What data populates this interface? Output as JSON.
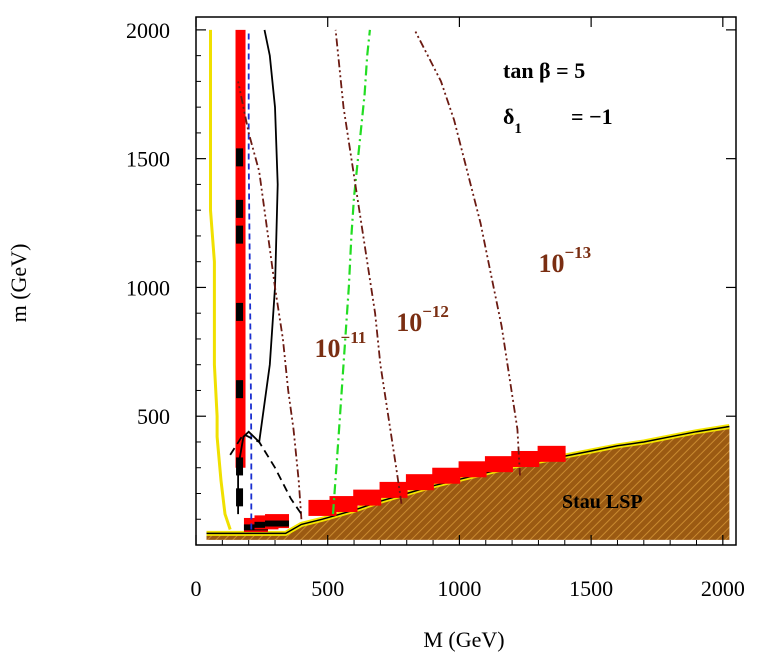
{
  "chart_data": {
    "type": "line",
    "title": "",
    "xlabel": "M (GeV)",
    "ylabel": "m (GeV)",
    "xlim": [
      0,
      2050
    ],
    "ylim": [
      0,
      2050
    ],
    "x_ticks": [
      "0",
      "500",
      "1000",
      "1500",
      "2000"
    ],
    "y_ticks": [
      "500",
      "1000",
      "1500",
      "2000"
    ],
    "x_tick_values": [
      0,
      500,
      1000,
      1500,
      2000
    ],
    "y_tick_values": [
      500,
      1000,
      1500,
      2000
    ],
    "annotations": {
      "tan_beta": "tan β = 5",
      "delta_symbol": "δ",
      "delta_sub": "1",
      "delta_value": "= −1",
      "region_label": "Stau LSP"
    },
    "contour_labels": [
      {
        "base": "10",
        "exp": "−11",
        "x": 450,
        "y": 730
      },
      {
        "base": "10",
        "exp": "−12",
        "x": 760,
        "y": 830
      },
      {
        "base": "10",
        "exp": "−13",
        "x": 1300,
        "y": 1060
      }
    ],
    "colors": {
      "stau_fill": "#9b5a12",
      "stau_edge": "#f5e600",
      "red_band": "#ff0000",
      "black_band": "#000000",
      "green_line": "#22dd22",
      "blue_line": "#1a2fd0",
      "contour": "#6b1a12",
      "yellow_line": "#f0e000"
    },
    "series": [
      {
        "style": "stau-boundary",
        "x": [
          40,
          340,
          400,
          480,
          600,
          700,
          800,
          900,
          1000,
          1100,
          1200,
          1300,
          1400,
          1500,
          1600,
          1700,
          1800,
          1900,
          2025
        ],
        "y": [
          45,
          45,
          80,
          100,
          135,
          170,
          200,
          230,
          255,
          280,
          305,
          325,
          345,
          365,
          385,
          400,
          420,
          440,
          460
        ]
      },
      {
        "style": "yellow-boundary",
        "x": [
          55,
          55,
          70,
          70,
          80,
          80,
          95,
          110,
          130
        ],
        "y": [
          2000,
          1300,
          1100,
          700,
          500,
          420,
          250,
          120,
          60
        ]
      },
      {
        "style": "green-dashed",
        "x": [
          520,
          540,
          560,
          580,
          590,
          600,
          620,
          640,
          650,
          660
        ],
        "y": [
          120,
          400,
          700,
          1000,
          1200,
          1350,
          1550,
          1750,
          1900,
          2000
        ]
      },
      {
        "style": "blue-dashed",
        "x": [
          210,
          210,
          205,
          200,
          200
        ],
        "y": [
          60,
          400,
          1000,
          1500,
          2000
        ]
      },
      {
        "style": "black-solid",
        "x": [
          160,
          160,
          180,
          200,
          240,
          280,
          300,
          310,
          300,
          280,
          260
        ],
        "y": [
          120,
          300,
          420,
          440,
          400,
          700,
          1000,
          1400,
          1700,
          1900,
          2000
        ]
      },
      {
        "style": "contour-1e-11",
        "x": [
          400,
          390,
          370,
          350,
          330,
          300,
          280,
          260,
          240,
          200,
          160
        ],
        "y": [
          100,
          250,
          450,
          600,
          800,
          1000,
          1150,
          1300,
          1450,
          1600,
          1800
        ]
      },
      {
        "style": "contour-1e-12",
        "x": [
          780,
          760,
          730,
          700,
          680,
          650,
          620,
          590,
          560,
          530
        ],
        "y": [
          160,
          300,
          500,
          700,
          900,
          1100,
          1300,
          1500,
          1700,
          2000
        ]
      },
      {
        "style": "contour-1e-13",
        "x": [
          1230,
          1220,
          1190,
          1160,
          1120,
          1080,
          1030,
          980,
          930,
          880,
          830
        ],
        "y": [
          270,
          450,
          650,
          850,
          1050,
          1250,
          1450,
          1650,
          1800,
          1900,
          2000
        ]
      }
    ]
  }
}
